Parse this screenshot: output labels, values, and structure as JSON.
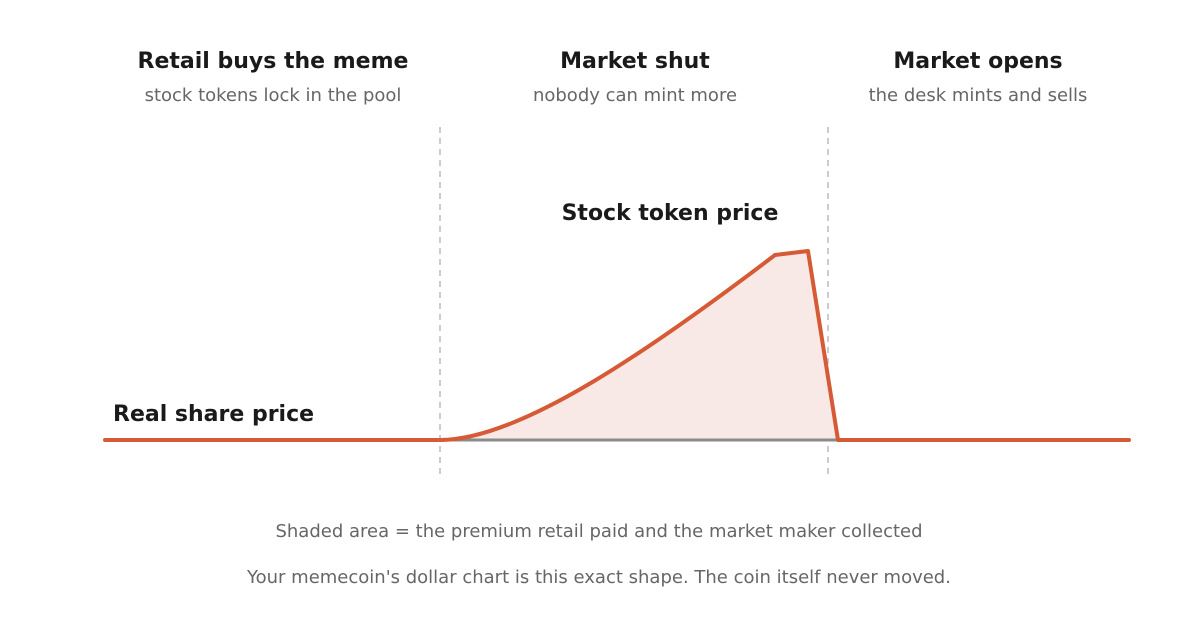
{
  "phases": [
    {
      "title": "Retail buys the meme",
      "subtitle": "stock tokens lock in the pool"
    },
    {
      "title": "Market shut",
      "subtitle": "nobody can mint more"
    },
    {
      "title": "Market opens",
      "subtitle": "the desk mints and sells"
    }
  ],
  "labels": {
    "curve": "Stock token price",
    "baseline": "Real share price"
  },
  "footer": [
    "Shaded area = the premium retail paid and the market maker collected",
    "Your memecoin's dollar chart is this exact shape. The coin itself never moved."
  ]
}
